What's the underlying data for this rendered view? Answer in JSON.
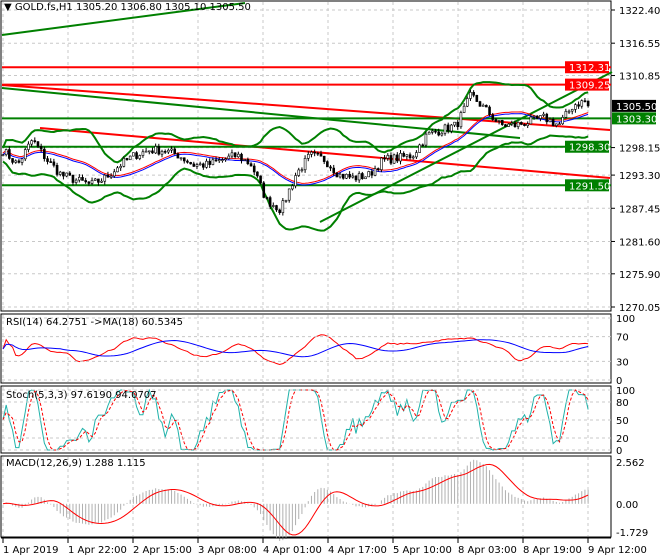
{
  "header": {
    "symbol": "GOLD.fs,H1",
    "ohlc": "1305.20 1306.80 1305.10 1305.50"
  },
  "chart_data": [
    {
      "type": "candlestick",
      "price_axis": {
        "ticks": [
          "1322.40",
          "1316.55",
          "1310.85",
          "1298.15",
          "1293.30",
          "1287.45",
          "1281.60",
          "1275.90",
          "1270.05"
        ],
        "range": [
          1270.05,
          1322.4
        ]
      },
      "current_price": {
        "label": "1305.50",
        "color": "#000000"
      },
      "levels": [
        {
          "label": "1312.31",
          "value": 1312.31,
          "color": "#ff0000"
        },
        {
          "label": "1309.25",
          "value": 1309.25,
          "color": "#ff0000"
        },
        {
          "label": "1303.30",
          "value": 1303.3,
          "color": "#008000"
        },
        {
          "label": "1298.30",
          "value": 1298.3,
          "color": "#008000"
        },
        {
          "label": "1291.50",
          "value": 1291.5,
          "color": "#008000"
        }
      ],
      "close_path": [
        1297.7,
        1295.1,
        1299.5,
        1296.0,
        1293.3,
        1292.4,
        1291.6,
        1292.8,
        1295.1,
        1296.8,
        1297.7,
        1297.7,
        1296.8,
        1295.1,
        1295.1,
        1296.0,
        1296.8,
        1295.1,
        1288.9,
        1287.2,
        1293.3,
        1296.8,
        1296.0,
        1293.3,
        1292.8,
        1293.3,
        1296.0,
        1296.3,
        1296.8,
        1300.4,
        1301.3,
        1302.1,
        1307.4,
        1304.8,
        1302.1,
        1302.1,
        1302.7,
        1303.4,
        1302.1,
        1305.7,
        1306.5
      ],
      "x_axis": {
        "ticks": [
          "1 Apr 2019",
          "1 Apr 22:00",
          "2 Apr 15:00",
          "3 Apr 08:00",
          "4 Apr 01:00",
          "4 Apr 17:00",
          "5 Apr 10:00",
          "8 Apr 03:00",
          "8 Apr 19:00",
          "9 Apr 12:00"
        ]
      }
    },
    {
      "type": "line",
      "label": "RSI(14) 64.2751  ->MA(18) 60.5345",
      "ticks": [
        "100",
        "70",
        "30",
        "0"
      ],
      "range": [
        0,
        100
      ],
      "colors": [
        "#ff0000",
        "#0000ff"
      ]
    },
    {
      "type": "line",
      "label": "Stoch(5,3,3) 97.6190 94.0707",
      "ticks": [
        "100",
        "80",
        "50",
        "20",
        "0"
      ],
      "range": [
        0,
        100
      ],
      "colors": [
        "#20b2aa",
        "#ff0000"
      ]
    },
    {
      "type": "bar",
      "label": "MACD(12,26,9) 1.288 1.115",
      "ticks": [
        "2.562",
        "0.00",
        "-1.729"
      ],
      "range": [
        -1.729,
        2.562
      ],
      "colors": [
        "#c0c0c0",
        "#ff0000"
      ]
    }
  ]
}
